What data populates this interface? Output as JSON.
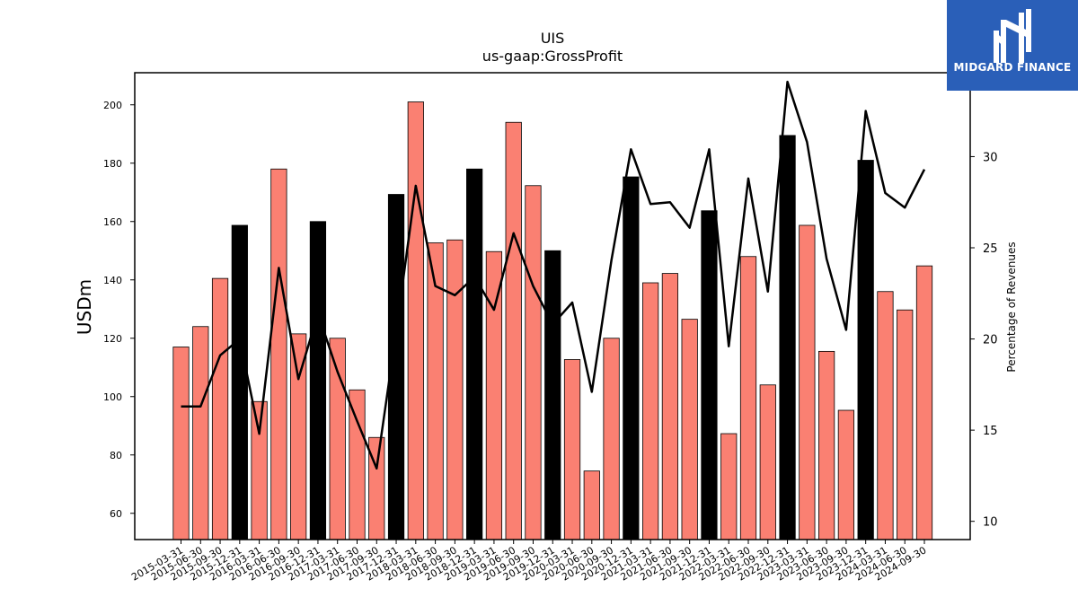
{
  "logo": {
    "text": "MIDGARD FINANCE"
  },
  "chart_data": {
    "type": "bar",
    "title": "UIS",
    "subtitle": "us-gaap:GrossProfit",
    "ylabel": "USDm",
    "y2label": "Percentage of Revenues",
    "ylim": [
      51,
      211
    ],
    "y2lim": [
      9,
      34.6
    ],
    "yticks": [
      60,
      80,
      100,
      120,
      140,
      160,
      180,
      200
    ],
    "y2ticks": [
      10,
      15,
      20,
      25,
      30
    ],
    "colors": {
      "quarter": "#fa8072",
      "year_end": "#000000",
      "line": "#000000"
    },
    "categories": [
      "2015-03-31",
      "2015-06-30",
      "2015-09-30",
      "2015-12-31",
      "2016-03-31",
      "2016-06-30",
      "2016-09-30",
      "2016-12-31",
      "2017-03-31",
      "2017-06-30",
      "2017-09-30",
      "2017-12-31",
      "2018-03-31",
      "2018-06-30",
      "2018-09-30",
      "2018-12-31",
      "2019-03-31",
      "2019-06-30",
      "2019-09-30",
      "2019-12-31",
      "2020-03-31",
      "2020-06-30",
      "2020-09-30",
      "2020-12-31",
      "2021-03-31",
      "2021-06-30",
      "2021-09-30",
      "2021-12-31",
      "2022-03-31",
      "2022-06-30",
      "2022-09-30",
      "2022-12-31",
      "2023-03-31",
      "2023-06-30",
      "2023-09-30",
      "2023-12-31",
      "2024-03-31",
      "2024-06-30",
      "2024-09-30"
    ],
    "series": [
      {
        "kind": "bar",
        "values": [
          117,
          124,
          140.5,
          158.7,
          98.3,
          178,
          121.5,
          160,
          120,
          102.3,
          86,
          169.3,
          201,
          152.7,
          153.7,
          178,
          149.7,
          194,
          172.3,
          150,
          112.7,
          74.5,
          120,
          175.3,
          139,
          142.2,
          126.5,
          163.7,
          87.3,
          148,
          104,
          189.5,
          158.7,
          115.5,
          95.3,
          181,
          136,
          129.7,
          144.8
        ],
        "year_end": [
          false,
          false,
          false,
          true,
          false,
          false,
          false,
          true,
          false,
          false,
          false,
          true,
          false,
          false,
          false,
          true,
          false,
          false,
          false,
          true,
          false,
          false,
          false,
          true,
          false,
          false,
          false,
          true,
          false,
          false,
          false,
          true,
          false,
          false,
          false,
          true,
          false,
          false,
          false
        ]
      },
      {
        "kind": "line",
        "axis": "right",
        "values": [
          16.3,
          16.3,
          19.1,
          20,
          14.8,
          23.9,
          17.8,
          21.4,
          18.2,
          15.5,
          12.9,
          20.4,
          28.4,
          22.9,
          22.4,
          23.4,
          21.6,
          25.8,
          22.9,
          20.8,
          22,
          17.1,
          24.3,
          30.4,
          27.4,
          27.5,
          26.1,
          30.4,
          19.6,
          28.8,
          22.6,
          34.1,
          30.8,
          24.4,
          20.5,
          32.5,
          28,
          27.2,
          29.3
        ]
      }
    ]
  }
}
